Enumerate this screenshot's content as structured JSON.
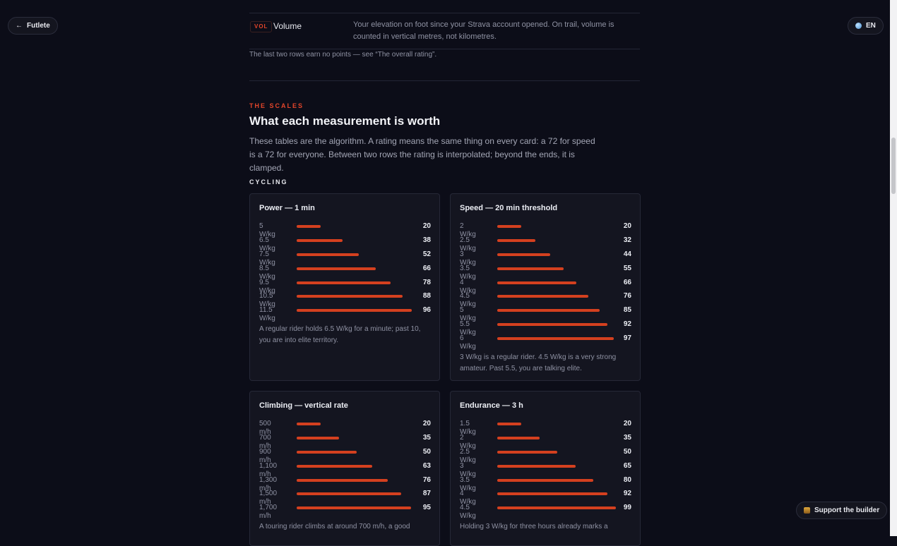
{
  "nav": {
    "back_label": "Futlete",
    "lang_label": "EN",
    "support_label": "Support the builder"
  },
  "volume_row": {
    "tag": "VOL",
    "name": "Volume",
    "description": "Your elevation on foot since your Strava account opened. On trail, volume is counted in vertical metres, not kilometres."
  },
  "note": "The last two rows earn no points — see “The overall rating”.",
  "scales": {
    "eyebrow": "THE SCALES",
    "title": "What each measurement is worth",
    "lead": "These tables are the algorithm. A rating means the same thing on every card: a 72 for speed is a 72 for everyone. Between two rows the rating is interpolated; beyond the ends, it is clamped.",
    "section_label": "CYCLING"
  },
  "cards": [
    {
      "title": "Power — 1 min",
      "rows": [
        {
          "label": "5 W/kg",
          "value": 20
        },
        {
          "label": "6.5 W/kg",
          "value": 38
        },
        {
          "label": "7.5 W/kg",
          "value": 52
        },
        {
          "label": "8.5 W/kg",
          "value": 66
        },
        {
          "label": "9.5 W/kg",
          "value": 78
        },
        {
          "label": "10.5 W/kg",
          "value": 88
        },
        {
          "label": "11.5 W/kg",
          "value": 96
        }
      ],
      "note": "A regular rider holds 6.5 W/kg for a minute; past 10, you are into elite territory."
    },
    {
      "title": "Speed — 20 min threshold",
      "rows": [
        {
          "label": "2 W/kg",
          "value": 20
        },
        {
          "label": "2.5 W/kg",
          "value": 32
        },
        {
          "label": "3 W/kg",
          "value": 44
        },
        {
          "label": "3.5 W/kg",
          "value": 55
        },
        {
          "label": "4 W/kg",
          "value": 66
        },
        {
          "label": "4.5 W/kg",
          "value": 76
        },
        {
          "label": "5 W/kg",
          "value": 85
        },
        {
          "label": "5.5 W/kg",
          "value": 92
        },
        {
          "label": "6 W/kg",
          "value": 97
        }
      ],
      "note": "3 W/kg is a regular rider. 4.5 W/kg is a very strong amateur. Past 5.5, you are talking elite."
    },
    {
      "title": "Climbing — vertical rate",
      "rows": [
        {
          "label": "500 m/h",
          "value": 20
        },
        {
          "label": "700 m/h",
          "value": 35
        },
        {
          "label": "900 m/h",
          "value": 50
        },
        {
          "label": "1,100 m/h",
          "value": 63
        },
        {
          "label": "1,300 m/h",
          "value": 76
        },
        {
          "label": "1,500 m/h",
          "value": 87
        },
        {
          "label": "1,700 m/h",
          "value": 95
        }
      ],
      "note": "A touring rider climbs at around 700 m/h, a good"
    },
    {
      "title": "Endurance — 3 h",
      "rows": [
        {
          "label": "1.5 W/kg",
          "value": 20
        },
        {
          "label": "2 W/kg",
          "value": 35
        },
        {
          "label": "2.5 W/kg",
          "value": 50
        },
        {
          "label": "3 W/kg",
          "value": 65
        },
        {
          "label": "3.5 W/kg",
          "value": 80
        },
        {
          "label": "4 W/kg",
          "value": 92
        },
        {
          "label": "4.5 W/kg",
          "value": 99
        }
      ],
      "note": "Holding 3 W/kg for three hours already marks a"
    }
  ]
}
